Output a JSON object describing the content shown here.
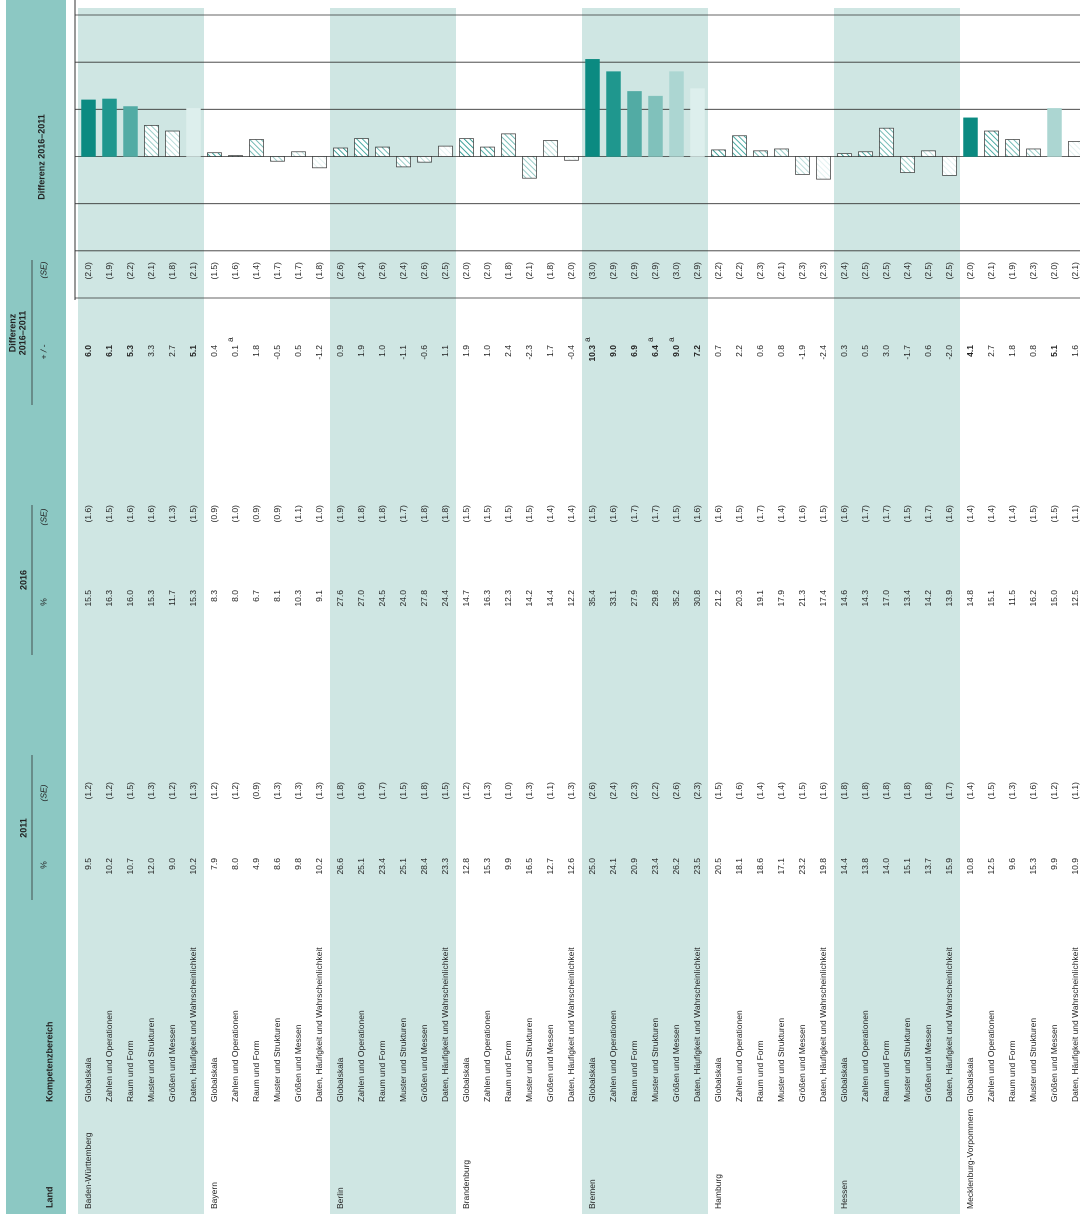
{
  "header": {
    "land": "Land",
    "kompetenzbereich": "Kompetenzbereich",
    "year1": "2011",
    "year2": "2016",
    "diff_title": [
      "Differenz",
      "2016–2011"
    ],
    "percent": "%",
    "se": "(SE)",
    "diff": "+ / -",
    "chart_title": "Differenz 2016–2011"
  },
  "chart": {
    "ylim": [
      -15,
      15
    ],
    "yticks": [
      -15,
      -10,
      -5,
      0,
      5,
      10,
      15
    ],
    "grid": true,
    "colors": [
      "#0b8a81",
      "#1f978e",
      "#52aba4",
      "#80c1bb",
      "#acd6d2",
      "#ddefed"
    ]
  },
  "states": [
    {
      "name": "Baden-Württemberg",
      "shaded": true,
      "rows": [
        {
          "area": "Globalskala",
          "p1": "9.5",
          "s1": "(1.2)",
          "p2": "15.5",
          "s2": "(1.6)",
          "d": "6.0",
          "sd": "(2.0)",
          "sig": true
        },
        {
          "area": "Zahlen und Operationen",
          "p1": "10.2",
          "s1": "(1.2)",
          "p2": "16.3",
          "s2": "(1.5)",
          "d": "6.1",
          "sd": "(1.9)",
          "sig": true
        },
        {
          "area": "Raum und Form",
          "p1": "10.7",
          "s1": "(1.5)",
          "p2": "16.0",
          "s2": "(1.6)",
          "d": "5.3",
          "sd": "(2.2)",
          "sig": true
        },
        {
          "area": "Muster und Strukturen",
          "p1": "12.0",
          "s1": "(1.3)",
          "p2": "15.3",
          "s2": "(1.6)",
          "d": "3.3",
          "sd": "(2.1)",
          "sig": false
        },
        {
          "area": "Größen und Messen",
          "p1": "9.0",
          "s1": "(1.2)",
          "p2": "11.7",
          "s2": "(1.3)",
          "d": "2.7",
          "sd": "(1.8)",
          "sig": false
        },
        {
          "area": "Daten, Häufigkeit und Wahrscheinlichkeit",
          "p1": "10.2",
          "s1": "(1.3)",
          "p2": "15.3",
          "s2": "(1.5)",
          "d": "5.1",
          "sd": "(2.1)",
          "sig": true
        }
      ]
    },
    {
      "name": "Bayern",
      "shaded": false,
      "rows": [
        {
          "area": "Globalskala",
          "p1": "7.9",
          "s1": "(1.2)",
          "p2": "8.3",
          "s2": "(0.9)",
          "d": "0.4",
          "sd": "(1.5)",
          "sig": false
        },
        {
          "area": "Zahlen und Operationen",
          "p1": "8.0",
          "s1": "(1.2)",
          "p2": "8.0",
          "s2": "(1.0)",
          "d": "0.1",
          "note": "a",
          "sd": "(1.6)",
          "sig": false
        },
        {
          "area": "Raum und Form",
          "p1": "4.9",
          "s1": "(0.9)",
          "p2": "6.7",
          "s2": "(0.9)",
          "d": "1.8",
          "sd": "(1.4)",
          "sig": false
        },
        {
          "area": "Muster und Strukturen",
          "p1": "8.6",
          "s1": "(1.3)",
          "p2": "8.1",
          "s2": "(0.9)",
          "d": "-0.5",
          "sd": "(1.7)",
          "sig": false
        },
        {
          "area": "Größen und Messen",
          "p1": "9.8",
          "s1": "(1.3)",
          "p2": "10.3",
          "s2": "(1.1)",
          "d": "0.5",
          "sd": "(1.7)",
          "sig": false
        },
        {
          "area": "Daten, Häufigkeit und Wahrscheinlichkeit",
          "p1": "10.2",
          "s1": "(1.3)",
          "p2": "9.1",
          "s2": "(1.0)",
          "d": "-1.2",
          "sd": "(1.8)",
          "sig": false
        }
      ]
    },
    {
      "name": "Berlin",
      "shaded": true,
      "rows": [
        {
          "area": "Globalskala",
          "p1": "26.6",
          "s1": "(1.8)",
          "p2": "27.6",
          "s2": "(1.9)",
          "d": "0.9",
          "sd": "(2.6)",
          "sig": false
        },
        {
          "area": "Zahlen und Operationen",
          "p1": "25.1",
          "s1": "(1.6)",
          "p2": "27.0",
          "s2": "(1.8)",
          "d": "1.9",
          "sd": "(2.4)",
          "sig": false
        },
        {
          "area": "Raum und Form",
          "p1": "23.4",
          "s1": "(1.7)",
          "p2": "24.5",
          "s2": "(1.8)",
          "d": "1.0",
          "sd": "(2.6)",
          "sig": false
        },
        {
          "area": "Muster und Strukturen",
          "p1": "25.1",
          "s1": "(1.5)",
          "p2": "24.0",
          "s2": "(1.7)",
          "d": "-1.1",
          "sd": "(2.4)",
          "sig": false
        },
        {
          "area": "Größen und Messen",
          "p1": "28.4",
          "s1": "(1.8)",
          "p2": "27.8",
          "s2": "(1.8)",
          "d": "-0.6",
          "sd": "(2.6)",
          "sig": false
        },
        {
          "area": "Daten, Häufigkeit und Wahrscheinlichkeit",
          "p1": "23.3",
          "s1": "(1.5)",
          "p2": "24.4",
          "s2": "(1.8)",
          "d": "1.1",
          "sd": "(2.5)",
          "sig": false
        }
      ]
    },
    {
      "name": "Brandenburg",
      "shaded": false,
      "rows": [
        {
          "area": "Globalskala",
          "p1": "12.8",
          "s1": "(1.2)",
          "p2": "14.7",
          "s2": "(1.5)",
          "d": "1.9",
          "sd": "(2.0)",
          "sig": false
        },
        {
          "area": "Zahlen und Operationen",
          "p1": "15.3",
          "s1": "(1.3)",
          "p2": "16.3",
          "s2": "(1.5)",
          "d": "1.0",
          "sd": "(2.0)",
          "sig": false
        },
        {
          "area": "Raum und Form",
          "p1": "9.9",
          "s1": "(1.0)",
          "p2": "12.3",
          "s2": "(1.5)",
          "d": "2.4",
          "sd": "(1.8)",
          "sig": false
        },
        {
          "area": "Muster und Strukturen",
          "p1": "16.5",
          "s1": "(1.3)",
          "p2": "14.2",
          "s2": "(1.5)",
          "d": "-2.3",
          "sd": "(2.1)",
          "sig": false
        },
        {
          "area": "Größen und Messen",
          "p1": "12.7",
          "s1": "(1.1)",
          "p2": "14.4",
          "s2": "(1.4)",
          "d": "1.7",
          "sd": "(1.8)",
          "sig": false
        },
        {
          "area": "Daten, Häufigkeit und Wahrscheinlichkeit",
          "p1": "12.6",
          "s1": "(1.3)",
          "p2": "12.2",
          "s2": "(1.4)",
          "d": "-0.4",
          "sd": "(2.0)",
          "sig": false
        }
      ]
    },
    {
      "name": "Bremen",
      "shaded": true,
      "rows": [
        {
          "area": "Globalskala",
          "p1": "25.0",
          "s1": "(2.6)",
          "p2": "35.4",
          "s2": "(1.5)",
          "d": "10.3",
          "note": "a",
          "sd": "(3.0)",
          "sig": true
        },
        {
          "area": "Zahlen und Operationen",
          "p1": "24.1",
          "s1": "(2.4)",
          "p2": "33.1",
          "s2": "(1.6)",
          "d": "9.0",
          "sd": "(2.9)",
          "sig": true
        },
        {
          "area": "Raum und Form",
          "p1": "20.9",
          "s1": "(2.3)",
          "p2": "27.9",
          "s2": "(1.7)",
          "d": "6.9",
          "sd": "(2.9)",
          "sig": true
        },
        {
          "area": "Muster und Strukturen",
          "p1": "23.4",
          "s1": "(2.2)",
          "p2": "29.8",
          "s2": "(1.7)",
          "d": "6.4",
          "note": "a",
          "sd": "(2.9)",
          "sig": true
        },
        {
          "area": "Größen und Messen",
          "p1": "26.2",
          "s1": "(2.6)",
          "p2": "35.2",
          "s2": "(1.5)",
          "d": "9.0",
          "note": "a",
          "sd": "(3.0)",
          "sig": true
        },
        {
          "area": "Daten, Häufigkeit und Wahrscheinlichkeit",
          "p1": "23.5",
          "s1": "(2.3)",
          "p2": "30.8",
          "s2": "(1.6)",
          "d": "7.2",
          "sd": "(2.9)",
          "sig": true
        }
      ]
    },
    {
      "name": "Hamburg",
      "shaded": false,
      "rows": [
        {
          "area": "Globalskala",
          "p1": "20.5",
          "s1": "(1.5)",
          "p2": "21.2",
          "s2": "(1.6)",
          "d": "0.7",
          "sd": "(2.2)",
          "sig": false
        },
        {
          "area": "Zahlen und Operationen",
          "p1": "18.1",
          "s1": "(1.6)",
          "p2": "20.3",
          "s2": "(1.5)",
          "d": "2.2",
          "sd": "(2.2)",
          "sig": false
        },
        {
          "area": "Raum und Form",
          "p1": "18.6",
          "s1": "(1.4)",
          "p2": "19.1",
          "s2": "(1.7)",
          "d": "0.6",
          "sd": "(2.3)",
          "sig": false
        },
        {
          "area": "Muster und Strukturen",
          "p1": "17.1",
          "s1": "(1.4)",
          "p2": "17.9",
          "s2": "(1.4)",
          "d": "0.8",
          "sd": "(2.1)",
          "sig": false
        },
        {
          "area": "Größen und Messen",
          "p1": "23.2",
          "s1": "(1.5)",
          "p2": "21.3",
          "s2": "(1.6)",
          "d": "-1.9",
          "sd": "(2.3)",
          "sig": false
        },
        {
          "area": "Daten, Häufigkeit und Wahrscheinlichkeit",
          "p1": "19.8",
          "s1": "(1.6)",
          "p2": "17.4",
          "s2": "(1.5)",
          "d": "-2.4",
          "sd": "(2.3)",
          "sig": false
        }
      ]
    },
    {
      "name": "Hessen",
      "shaded": true,
      "rows": [
        {
          "area": "Globalskala",
          "p1": "14.4",
          "s1": "(1.8)",
          "p2": "14.6",
          "s2": "(1.6)",
          "d": "0.3",
          "sd": "(2.4)",
          "sig": false
        },
        {
          "area": "Zahlen und Operationen",
          "p1": "13.8",
          "s1": "(1.8)",
          "p2": "14.3",
          "s2": "(1.7)",
          "d": "0.5",
          "sd": "(2.5)",
          "sig": false
        },
        {
          "area": "Raum und Form",
          "p1": "14.0",
          "s1": "(1.8)",
          "p2": "17.0",
          "s2": "(1.7)",
          "d": "3.0",
          "sd": "(2.5)",
          "sig": false
        },
        {
          "area": "Muster und Strukturen",
          "p1": "15.1",
          "s1": "(1.8)",
          "p2": "13.4",
          "s2": "(1.5)",
          "d": "-1.7",
          "sd": "(2.4)",
          "sig": false
        },
        {
          "area": "Größen und Messen",
          "p1": "13.7",
          "s1": "(1.8)",
          "p2": "14.2",
          "s2": "(1.7)",
          "d": "0.6",
          "sd": "(2.5)",
          "sig": false
        },
        {
          "area": "Daten, Häufigkeit und Wahrscheinlichkeit",
          "p1": "15.9",
          "s1": "(1.7)",
          "p2": "13.9",
          "s2": "(1.6)",
          "d": "-2.0",
          "sd": "(2.5)",
          "sig": false
        }
      ]
    },
    {
      "name": "Mecklenburg-Vorpommern",
      "shaded": false,
      "rows": [
        {
          "area": "Globalskala",
          "p1": "10.8",
          "s1": "(1.4)",
          "p2": "14.8",
          "s2": "(1.4)",
          "d": "4.1",
          "sd": "(2.0)",
          "sig": true
        },
        {
          "area": "Zahlen und Operationen",
          "p1": "12.5",
          "s1": "(1.5)",
          "p2": "15.1",
          "s2": "(1.4)",
          "d": "2.7",
          "sd": "(2.1)",
          "sig": false
        },
        {
          "area": "Raum und Form",
          "p1": "9.6",
          "s1": "(1.3)",
          "p2": "11.5",
          "s2": "(1.4)",
          "d": "1.8",
          "sd": "(1.9)",
          "sig": false
        },
        {
          "area": "Muster und Strukturen",
          "p1": "15.3",
          "s1": "(1.6)",
          "p2": "16.2",
          "s2": "(1.5)",
          "d": "0.8",
          "sd": "(2.3)",
          "sig": false
        },
        {
          "area": "Größen und Messen",
          "p1": "9.9",
          "s1": "(1.2)",
          "p2": "15.0",
          "s2": "(1.5)",
          "d": "5.1",
          "sd": "(2.0)",
          "sig": true
        },
        {
          "area": "Daten, Häufigkeit und Wahrscheinlichkeit",
          "p1": "10.9",
          "s1": "(1.1)",
          "p2": "12.5",
          "s2": "(1.1)",
          "d": "1.6",
          "sd": "(2.1)",
          "sig": false
        }
      ]
    }
  ]
}
